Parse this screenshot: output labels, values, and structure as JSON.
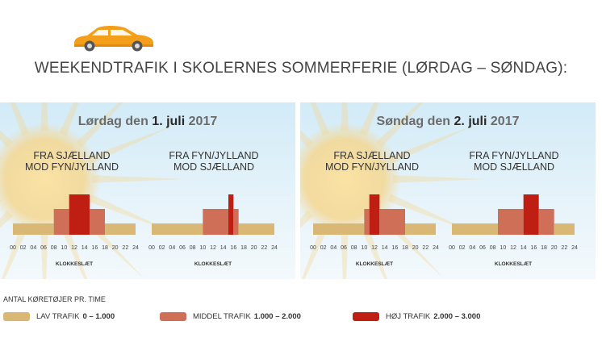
{
  "header": {
    "title": "WEEKENDTRAFIK I SKOLERNES SOMMERFERIE (LØRDAG – SØNDAG):",
    "icon": "car-icon"
  },
  "colors": {
    "low": "#d8b874",
    "medium": "#cf6f57",
    "high": "#bf1e12",
    "car": "#f39f1c",
    "sun": "#f6d58a"
  },
  "legend": {
    "title": "ANTAL KØRETØJER PR. TIME",
    "items": [
      {
        "label": "LAV TRAFIK",
        "range": "0 – 1.000"
      },
      {
        "label": "MIDDEL TRAFIK",
        "range": "1.000 – 2.000"
      },
      {
        "label": "HØJ TRAFIK",
        "range": "2.000 – 3.000"
      }
    ]
  },
  "chart_data": [
    {
      "type": "bar",
      "title_prefix": "Lørdag den",
      "title_date": "1. juli",
      "title_year": "2017",
      "xlabel": "KLOKKESLÆT",
      "xticks": [
        "00",
        "02",
        "04",
        "06",
        "08",
        "10",
        "12",
        "14",
        "16",
        "18",
        "20",
        "22",
        "24"
      ],
      "ylabel": "",
      "series": [
        {
          "name": "FRA SJÆLLAND\nMOD FYN/JYLLAND",
          "segments": [
            {
              "from": 0,
              "to": 8,
              "level": "low"
            },
            {
              "from": 8,
              "to": 11,
              "level": "medium"
            },
            {
              "from": 11,
              "to": 15,
              "level": "high"
            },
            {
              "from": 15,
              "to": 18,
              "level": "medium"
            },
            {
              "from": 18,
              "to": 24,
              "level": "low"
            }
          ]
        },
        {
          "name": "FRA FYN/JYLLAND\nMOD SJÆLLAND",
          "segments": [
            {
              "from": 0,
              "to": 10,
              "level": "low"
            },
            {
              "from": 10,
              "to": 15,
              "level": "medium"
            },
            {
              "from": 15,
              "to": 16,
              "level": "high"
            },
            {
              "from": 16,
              "to": 17,
              "level": "medium"
            },
            {
              "from": 17,
              "to": 24,
              "level": "low"
            }
          ]
        }
      ]
    },
    {
      "type": "bar",
      "title_prefix": "Søndag den",
      "title_date": "2. juli",
      "title_year": "2017",
      "xlabel": "KLOKKESLÆT",
      "xticks": [
        "00",
        "02",
        "04",
        "06",
        "08",
        "10",
        "12",
        "14",
        "16",
        "18",
        "20",
        "22",
        "24"
      ],
      "ylabel": "",
      "series": [
        {
          "name": "FRA SJÆLLAND\nMOD FYN/JYLLAND",
          "segments": [
            {
              "from": 0,
              "to": 10,
              "level": "low"
            },
            {
              "from": 10,
              "to": 11,
              "level": "medium"
            },
            {
              "from": 11,
              "to": 13,
              "level": "high"
            },
            {
              "from": 13,
              "to": 18,
              "level": "medium"
            },
            {
              "from": 18,
              "to": 24,
              "level": "low"
            }
          ]
        },
        {
          "name": "FRA FYN/JYLLAND\nMOD SJÆLLAND",
          "segments": [
            {
              "from": 0,
              "to": 9,
              "level": "low"
            },
            {
              "from": 9,
              "to": 14,
              "level": "medium"
            },
            {
              "from": 14,
              "to": 17,
              "level": "high"
            },
            {
              "from": 17,
              "to": 20,
              "level": "medium"
            },
            {
              "from": 20,
              "to": 24,
              "level": "low"
            }
          ]
        }
      ]
    }
  ]
}
